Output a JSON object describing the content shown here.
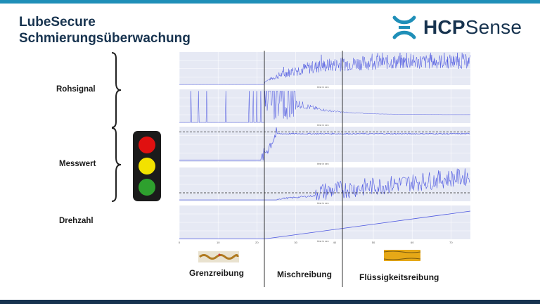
{
  "title": {
    "line1": "LubeSecure",
    "line2": "Schmierungsüberwachung"
  },
  "logo": {
    "bold": "HCP",
    "light": "Sense",
    "icon": "hcp-logo-icon"
  },
  "colors": {
    "accent": "#1f8fb8",
    "navy": "#17334f",
    "signal": "#4a55e0",
    "green": "#2ea02e",
    "yellow": "#f2e200",
    "red": "#e01010"
  },
  "sections": {
    "raw": "Rohsignal",
    "measure": "Messwert",
    "speed": "Drehzahl"
  },
  "traffic_light": {
    "states": [
      "red",
      "yellow",
      "green"
    ]
  },
  "regimes": {
    "boundary": "Grenzreibung",
    "mixed": "Mischreibung",
    "fluid": "Flüssigkeitsreibung"
  },
  "chart_data": {
    "type": "line",
    "xlabel": "time in sec",
    "xlim": [
      0,
      75
    ],
    "x_ticks": [
      "0",
      "10",
      "20",
      "30",
      "40",
      "50",
      "60",
      "70"
    ],
    "regime_boundaries": [
      22,
      42
    ],
    "panels": [
      {
        "name": "raw-amplitude",
        "description_in_image": "noisy raw signal amplitude rising from ~0 to ~40 after t≈22s"
      },
      {
        "name": "raw-frequency",
        "description_in_image": "spiky signal, dense spikes 22–30s then decaying plateau ~20"
      },
      {
        "name": "measure-1",
        "threshold": 0.75,
        "step_at": 22,
        "low": 0.05,
        "high": 0.8
      },
      {
        "name": "measure-2",
        "threshold": 0.25,
        "rises_after": 35
      },
      {
        "name": "speed",
        "start": 22,
        "values": [
          [
            22,
            0
          ],
          [
            75,
            50
          ]
        ]
      }
    ]
  }
}
